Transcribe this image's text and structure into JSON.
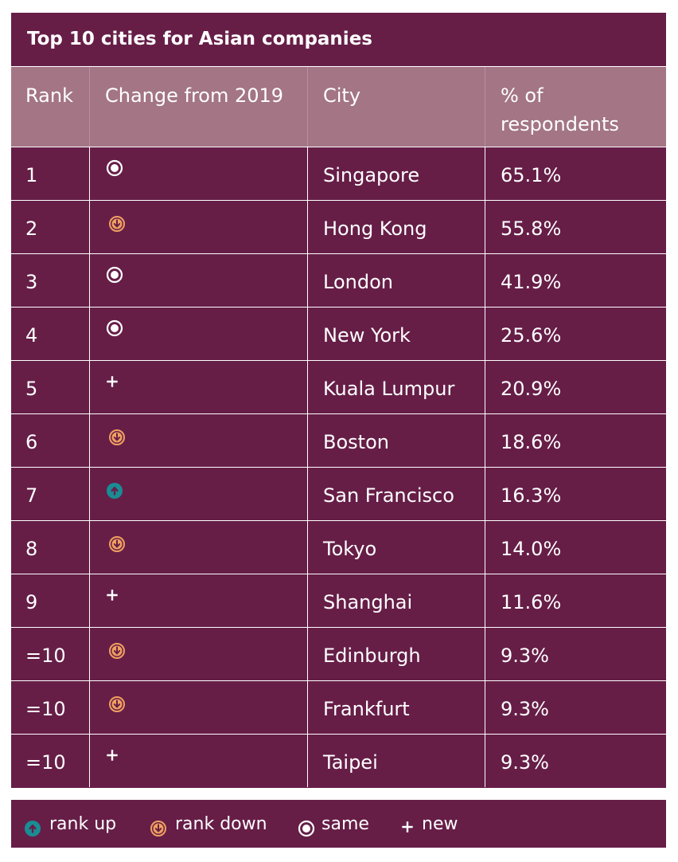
{
  "title": "Top 10 cities for Asian companies",
  "columns": {
    "rank": "Rank",
    "change": "Change from 2019",
    "city": "City",
    "pct_line1": "% of",
    "pct_line2": "respondents"
  },
  "rows": [
    {
      "rank": "1",
      "change": "same",
      "city": "Singapore",
      "pct": "65.1%"
    },
    {
      "rank": "2",
      "change": "rank-down",
      "city": "Hong Kong",
      "pct": "55.8%"
    },
    {
      "rank": "3",
      "change": "same",
      "city": "London",
      "pct": "41.9%"
    },
    {
      "rank": "4",
      "change": "same",
      "city": "New York",
      "pct": "25.6%"
    },
    {
      "rank": "5",
      "change": "new",
      "city": "Kuala Lumpur",
      "pct": "20.9%"
    },
    {
      "rank": "6",
      "change": "rank-down",
      "city": "Boston",
      "pct": "18.6%"
    },
    {
      "rank": "7",
      "change": "rank-up",
      "city": "San Francisco",
      "pct": "16.3%"
    },
    {
      "rank": "8",
      "change": "rank-down",
      "city": "Tokyo",
      "pct": "14.0%"
    },
    {
      "rank": "9",
      "change": "new",
      "city": "Shanghai",
      "pct": "11.6%"
    },
    {
      "rank": "=10",
      "change": "rank-down",
      "city": "Edinburgh",
      "pct": "9.3%"
    },
    {
      "rank": "=10",
      "change": "rank-down",
      "city": "Frankfurt",
      "pct": "9.3%"
    },
    {
      "rank": "=10",
      "change": "new",
      "city": "Taipei",
      "pct": "9.3%"
    }
  ],
  "legend": {
    "rank_up": "rank up",
    "rank_down": "rank down",
    "same": "same",
    "new": "new"
  },
  "icons": {
    "rank-up": "arrow-up-circle-icon",
    "rank-down": "arrow-down-circle-icon",
    "same": "dot-circle-icon",
    "new": "plus-icon"
  },
  "colors": {
    "panel": "#661e47",
    "header": "#a37585",
    "rank_up": "#1a8c94",
    "rank_down": "#f0a060",
    "text": "#ffffff"
  }
}
